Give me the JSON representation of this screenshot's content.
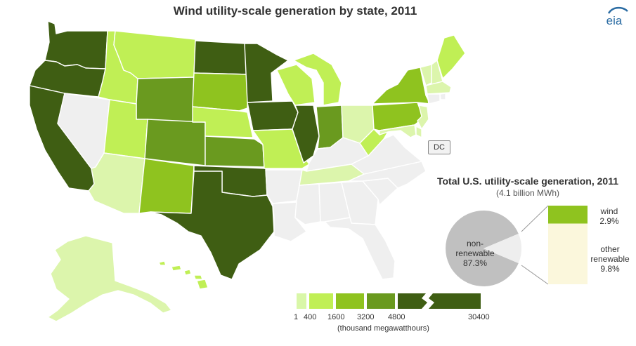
{
  "title": "Wind utility-scale generation by state, 2011",
  "logo_text": "eia",
  "dc_label": "DC",
  "pie": {
    "title": "Total U.S. utility-scale  generation, 2011",
    "subtitle": "(4.1 billion MWh)",
    "slices": [
      {
        "name_lines": [
          "non-",
          "renewable"
        ],
        "value_label": "87.3%",
        "percent": 87.3,
        "color": "#c0c0c0"
      },
      {
        "name_lines": [
          "wind"
        ],
        "value_label": "2.9%",
        "percent": 2.9,
        "color": "#8fc31f"
      },
      {
        "name_lines": [
          "other",
          "renewable"
        ],
        "value_label": "9.8%",
        "percent": 9.8,
        "color": "#fbf7dc"
      }
    ]
  },
  "legend": {
    "bins": [
      "#d9f7a8",
      "#c0ef55",
      "#8fc31f",
      "#6a9a1f",
      "#3f5e13",
      "#3f5e13"
    ],
    "tick_labels": [
      "1",
      "400",
      "1600",
      "3200",
      "4800",
      "30400"
    ],
    "unit": "(thousand megawatthours)"
  },
  "colors": {
    "none": "#efefef",
    "level1": "#dcf5ac",
    "level2": "#c0ef55",
    "level3": "#8fc31f",
    "level4": "#6a9a1f",
    "level5": "#3f5e13"
  },
  "states": [
    {
      "name": "WA",
      "level": 5
    },
    {
      "name": "OR",
      "level": 5
    },
    {
      "name": "CA",
      "level": 5
    },
    {
      "name": "NV",
      "level": 0
    },
    {
      "name": "ID",
      "level": 2
    },
    {
      "name": "MT",
      "level": 2
    },
    {
      "name": "WY",
      "level": 4
    },
    {
      "name": "UT",
      "level": 2
    },
    {
      "name": "AZ",
      "level": 1
    },
    {
      "name": "CO",
      "level": 4
    },
    {
      "name": "NM",
      "level": 3
    },
    {
      "name": "ND",
      "level": 5
    },
    {
      "name": "SD",
      "level": 3
    },
    {
      "name": "NE",
      "level": 2
    },
    {
      "name": "KS",
      "level": 4
    },
    {
      "name": "OK",
      "level": 5
    },
    {
      "name": "TX",
      "level": 5
    },
    {
      "name": "MN",
      "level": 5
    },
    {
      "name": "IA",
      "level": 5
    },
    {
      "name": "MO",
      "level": 2
    },
    {
      "name": "AR",
      "level": 0
    },
    {
      "name": "LA",
      "level": 0
    },
    {
      "name": "WI",
      "level": 2
    },
    {
      "name": "IL",
      "level": 5
    },
    {
      "name": "MI",
      "level": 2
    },
    {
      "name": "IN",
      "level": 4
    },
    {
      "name": "OH",
      "level": 1
    },
    {
      "name": "KY",
      "level": 0
    },
    {
      "name": "TN",
      "level": 1
    },
    {
      "name": "MS",
      "level": 0
    },
    {
      "name": "AL",
      "level": 0
    },
    {
      "name": "GA",
      "level": 0
    },
    {
      "name": "FL",
      "level": 0
    },
    {
      "name": "SC",
      "level": 0
    },
    {
      "name": "NC",
      "level": 0
    },
    {
      "name": "VA",
      "level": 0
    },
    {
      "name": "WV",
      "level": 2
    },
    {
      "name": "PA",
      "level": 3
    },
    {
      "name": "NY",
      "level": 3
    },
    {
      "name": "VT",
      "level": 1
    },
    {
      "name": "NH",
      "level": 1
    },
    {
      "name": "ME",
      "level": 2
    },
    {
      "name": "MA",
      "level": 1
    },
    {
      "name": "RI",
      "level": 0
    },
    {
      "name": "CT",
      "level": 0
    },
    {
      "name": "NJ",
      "level": 1
    },
    {
      "name": "DE",
      "level": 1
    },
    {
      "name": "MD",
      "level": 1
    },
    {
      "name": "AK",
      "level": 1
    },
    {
      "name": "HI",
      "level": 2
    }
  ]
}
